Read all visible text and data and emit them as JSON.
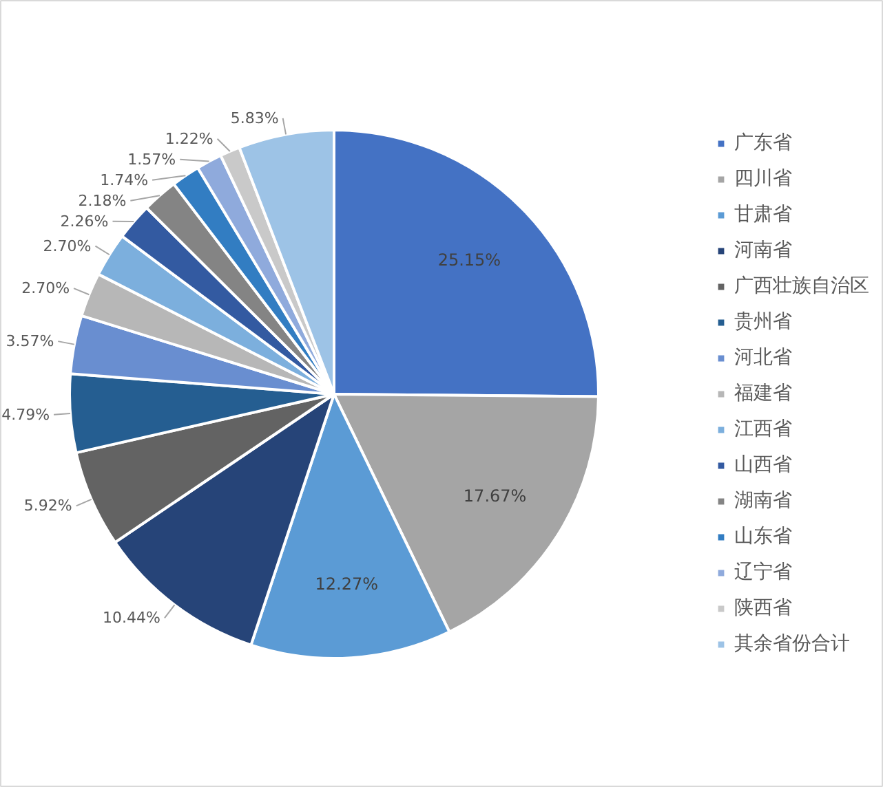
{
  "chart_data": {
    "type": "pie",
    "categories": [
      "广东省",
      "四川省",
      "甘肃省",
      "河南省",
      "广西壮族自治区",
      "贵州省",
      "河北省",
      "福建省",
      "江西省",
      "山西省",
      "湖南省",
      "山东省",
      "辽宁省",
      "陕西省",
      "其余省份合计"
    ],
    "values": [
      25.15,
      17.67,
      12.27,
      10.44,
      5.92,
      4.79,
      3.57,
      2.7,
      2.7,
      2.26,
      2.18,
      1.74,
      1.57,
      1.22,
      5.83
    ],
    "value_labels": [
      "25.15%",
      "17.67%",
      "12.27%",
      "10.44%",
      "5.92%",
      "4.79%",
      "3.57%",
      "2.70%",
      "2.70%",
      "2.26%",
      "2.18%",
      "1.74%",
      "1.57%",
      "1.22%",
      "5.83%"
    ],
    "colors": [
      "#4472c4",
      "#a5a5a5",
      "#5b9bd5",
      "#264478",
      "#636363",
      "#255e91",
      "#698ed0",
      "#b7b7b7",
      "#7cafdd",
      "#335aa1",
      "#848484",
      "#327dc2",
      "#8faadc",
      "#c9c9c9",
      "#9dc3e6"
    ],
    "legend": "right"
  }
}
